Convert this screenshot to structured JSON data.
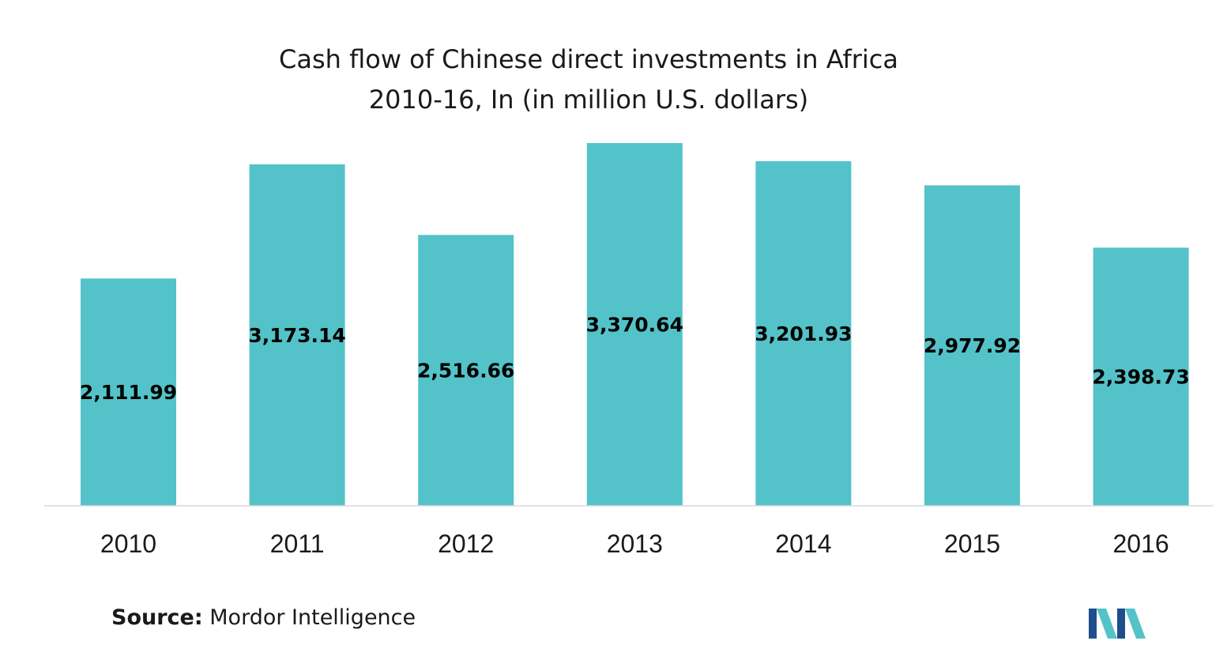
{
  "chart_data": {
    "type": "bar",
    "title": [
      "Cash flow of Chinese direct investments in Africa",
      "2010-16, In  (in million U.S. dollars)"
    ],
    "categories": [
      "2010",
      "2011",
      "2012",
      "2013",
      "2014",
      "2015",
      "2016"
    ],
    "values": [
      2111.99,
      3173.14,
      2516.66,
      3370.64,
      3201.93,
      2977.92,
      2398.73
    ],
    "value_labels": [
      "2,111.99",
      "3,173.14",
      "2,516.66",
      "3,370.64",
      "3,201.93",
      "2,977.92",
      "2,398.73"
    ],
    "xlabel": "",
    "ylabel": "",
    "ylim": [
      0,
      3370.64
    ],
    "grid": false,
    "legend": "none",
    "bar_color": "#53c3c9"
  },
  "source": {
    "label": "Source:",
    "text": "Mordor Intelligence"
  },
  "logo": {
    "icon": "mordor-intelligence-logo-icon",
    "color_dark": "#1f4e8c",
    "color_light": "#53c3c9"
  }
}
